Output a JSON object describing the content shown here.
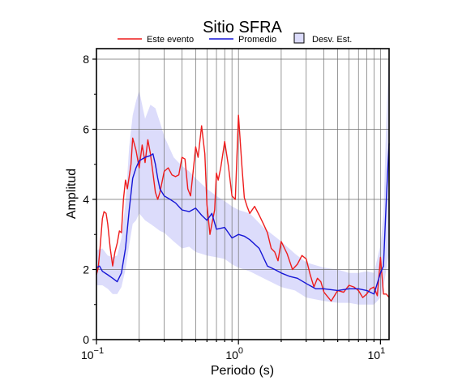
{
  "chart_data": {
    "type": "line",
    "title": "Sitio SFRA",
    "xlabel": "Periodo (s)",
    "ylabel": "Amplitud",
    "x_scale": "log",
    "xlim": [
      0.1,
      11.5
    ],
    "ylim": [
      0,
      8.3
    ],
    "x_ticks": [
      {
        "value": 0.1,
        "base": "10",
        "exp": "−1"
      },
      {
        "value": 1,
        "label": "10",
        "exp": "0"
      },
      {
        "value": 10,
        "base": "10",
        "exp": "1"
      }
    ],
    "y_ticks": [
      0,
      2,
      4,
      6,
      8
    ],
    "y_ticks_label": [
      "0",
      "2",
      "4",
      "6",
      "8"
    ],
    "grid": true,
    "legend": {
      "placement": "top",
      "entries": [
        {
          "label": "Este evento",
          "color": "#ee1c1c",
          "kind": "line"
        },
        {
          "label": "Promedio",
          "color": "#1515d6",
          "kind": "line"
        },
        {
          "label": "Desv. Est.",
          "color": "#dcdcfb",
          "kind": "box"
        }
      ]
    },
    "series": [
      {
        "name": "Este evento",
        "color": "#ee1c1c",
        "x": [
          0.1,
          0.103,
          0.106,
          0.11,
          0.113,
          0.117,
          0.12,
          0.125,
          0.13,
          0.135,
          0.14,
          0.145,
          0.15,
          0.155,
          0.16,
          0.165,
          0.17,
          0.175,
          0.18,
          0.19,
          0.2,
          0.21,
          0.22,
          0.23,
          0.24,
          0.25,
          0.26,
          0.27,
          0.28,
          0.3,
          0.32,
          0.34,
          0.36,
          0.38,
          0.4,
          0.42,
          0.44,
          0.46,
          0.48,
          0.5,
          0.52,
          0.55,
          0.58,
          0.6,
          0.63,
          0.65,
          0.68,
          0.7,
          0.72,
          0.75,
          0.8,
          0.85,
          0.9,
          0.95,
          1.0,
          1.03,
          1.06,
          1.1,
          1.15,
          1.2,
          1.3,
          1.4,
          1.5,
          1.6,
          1.7,
          1.8,
          1.9,
          2.0,
          2.2,
          2.4,
          2.6,
          2.8,
          3.0,
          3.2,
          3.4,
          3.6,
          3.8,
          4.0,
          4.5,
          5.0,
          5.5,
          6.0,
          6.5,
          7.0,
          7.5,
          8.0,
          8.5,
          9.0,
          9.5,
          10.0,
          10.5,
          11.0,
          11.5
        ],
        "values": [
          1.85,
          2.05,
          2.6,
          3.45,
          3.65,
          3.6,
          3.3,
          2.6,
          2.1,
          2.5,
          2.75,
          3.1,
          3.05,
          4.0,
          4.55,
          4.3,
          4.65,
          5.0,
          5.75,
          5.4,
          4.9,
          5.55,
          5.05,
          5.7,
          5.3,
          4.75,
          4.2,
          4.0,
          4.2,
          4.8,
          4.9,
          4.7,
          4.65,
          4.7,
          5.2,
          5.15,
          4.3,
          4.1,
          4.8,
          5.5,
          5.2,
          6.1,
          5.3,
          3.85,
          3.0,
          3.3,
          3.7,
          4.75,
          4.55,
          4.9,
          5.65,
          4.95,
          4.1,
          4.0,
          6.4,
          5.65,
          4.9,
          4.05,
          3.8,
          3.6,
          3.8,
          3.55,
          3.3,
          3.05,
          2.6,
          2.5,
          2.25,
          2.8,
          2.45,
          2.0,
          2.15,
          2.4,
          2.3,
          1.85,
          1.5,
          1.75,
          1.65,
          1.35,
          1.1,
          1.4,
          1.35,
          1.55,
          1.5,
          1.4,
          1.2,
          1.3,
          1.45,
          1.5,
          1.25,
          2.35,
          1.3,
          1.3,
          1.2
        ]
      },
      {
        "name": "Promedio",
        "color": "#1515d6",
        "x": [
          0.1,
          0.105,
          0.11,
          0.12,
          0.13,
          0.14,
          0.15,
          0.16,
          0.17,
          0.18,
          0.19,
          0.2,
          0.22,
          0.24,
          0.25,
          0.26,
          0.27,
          0.28,
          0.3,
          0.33,
          0.36,
          0.4,
          0.45,
          0.5,
          0.55,
          0.6,
          0.65,
          0.7,
          0.8,
          0.9,
          1.0,
          1.1,
          1.2,
          1.4,
          1.6,
          1.8,
          2.0,
          2.3,
          2.6,
          3.0,
          3.5,
          4.0,
          5.0,
          6.0,
          7.0,
          8.0,
          9.0,
          10.0,
          10.5,
          11.0,
          11.5
        ],
        "values": [
          2.05,
          2.1,
          1.95,
          1.85,
          1.75,
          1.65,
          1.9,
          2.6,
          3.7,
          4.6,
          4.9,
          5.1,
          5.2,
          5.25,
          5.3,
          5.0,
          4.6,
          4.3,
          4.1,
          4.0,
          3.9,
          3.7,
          3.65,
          3.75,
          3.55,
          3.4,
          3.6,
          3.15,
          3.2,
          2.9,
          3.0,
          2.95,
          2.85,
          2.6,
          2.1,
          2.0,
          1.9,
          1.8,
          1.75,
          1.6,
          1.45,
          1.45,
          1.4,
          1.45,
          1.45,
          1.4,
          1.3,
          1.9,
          2.1,
          4.0,
          5.6
        ]
      },
      {
        "name": "Desv. Est.",
        "color": "#dcdcfb",
        "kind": "band",
        "x": [
          0.1,
          0.11,
          0.12,
          0.13,
          0.14,
          0.15,
          0.16,
          0.17,
          0.18,
          0.19,
          0.2,
          0.22,
          0.24,
          0.26,
          0.28,
          0.3,
          0.35,
          0.4,
          0.45,
          0.5,
          0.6,
          0.7,
          0.8,
          0.9,
          1.0,
          1.2,
          1.5,
          2.0,
          2.5,
          3.0,
          4.0,
          5.0,
          6.0,
          7.0,
          8.0,
          9.0,
          10.0,
          10.5,
          11.0,
          11.5
        ],
        "upper": [
          2.55,
          2.6,
          2.4,
          2.35,
          2.4,
          2.9,
          3.9,
          5.5,
          6.4,
          6.8,
          7.1,
          6.3,
          6.7,
          6.6,
          6.2,
          5.8,
          5.2,
          4.95,
          4.8,
          4.6,
          4.3,
          4.1,
          3.95,
          3.8,
          3.7,
          3.6,
          3.2,
          2.8,
          2.45,
          2.2,
          2.05,
          2.0,
          1.9,
          1.9,
          1.95,
          1.9,
          2.7,
          3.6,
          6.3,
          8.3
        ],
        "lower": [
          1.55,
          1.55,
          1.45,
          1.3,
          1.3,
          1.5,
          2.0,
          2.7,
          3.3,
          3.4,
          3.6,
          3.4,
          3.3,
          3.2,
          3.1,
          3.05,
          2.8,
          2.6,
          2.65,
          2.5,
          2.4,
          2.35,
          2.3,
          2.15,
          2.05,
          1.95,
          1.75,
          1.5,
          1.4,
          1.2,
          1.1,
          1.05,
          1.05,
          1.0,
          1.0,
          1.0,
          1.2,
          1.5,
          2.0,
          2.5
        ]
      }
    ]
  }
}
